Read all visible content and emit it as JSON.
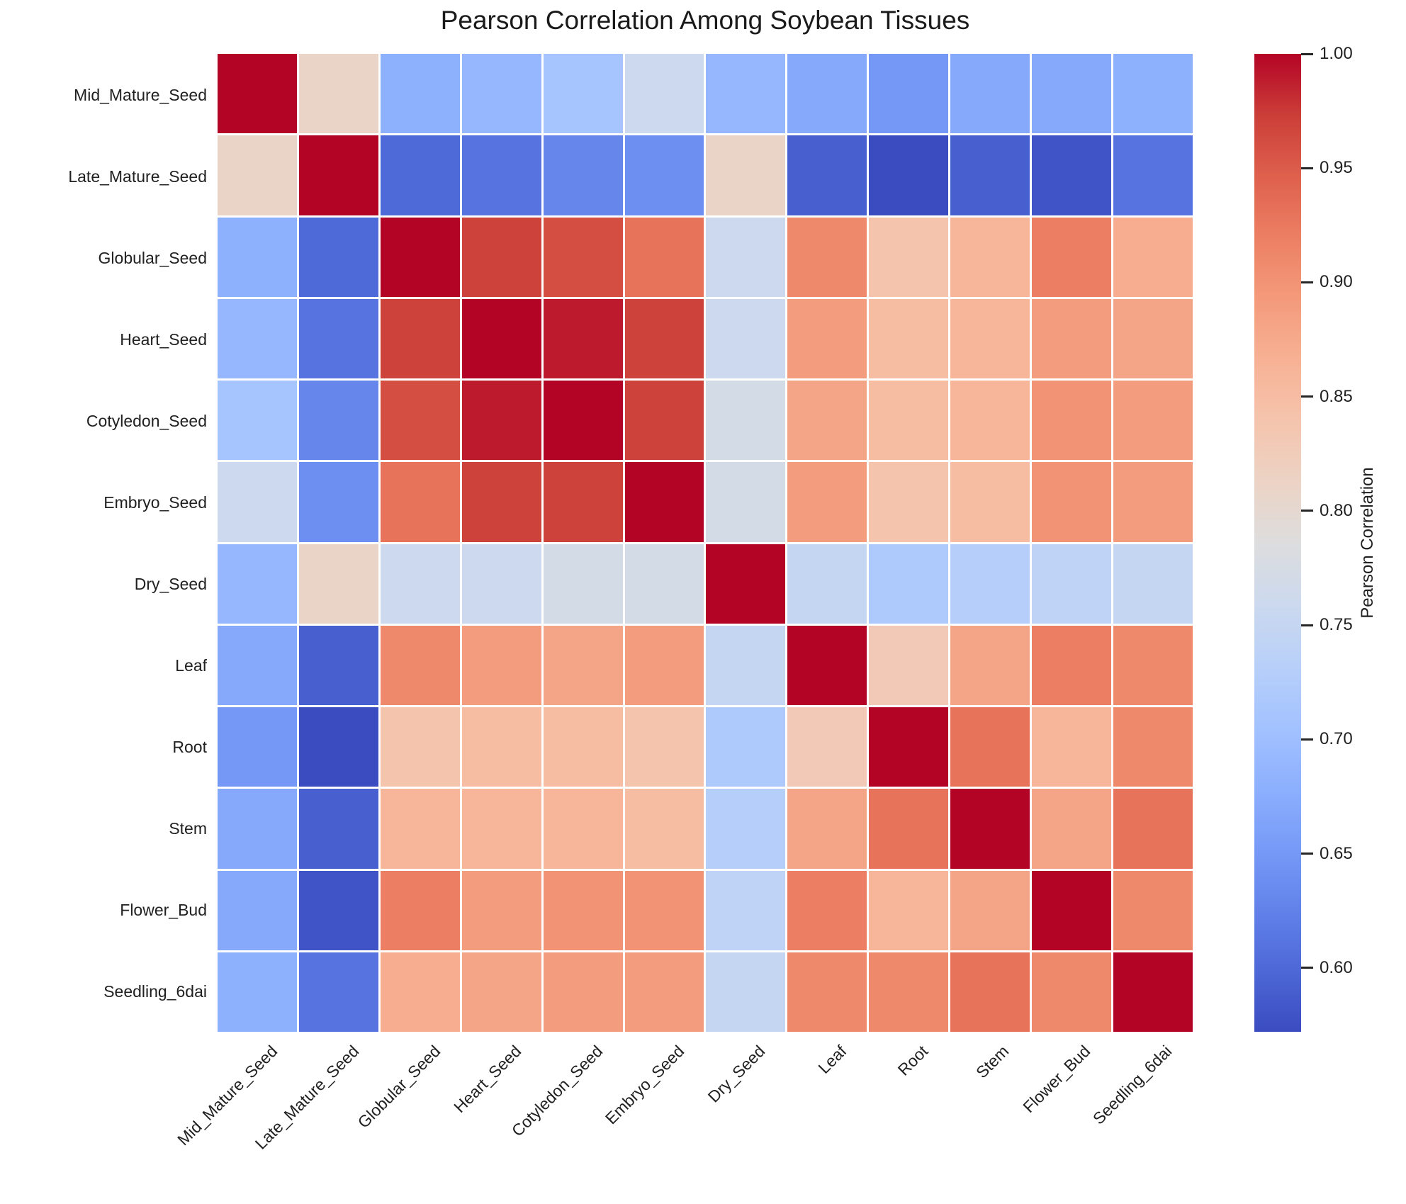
{
  "figure": {
    "title": "Pearson Correlation Among Soybean Tissues",
    "background_color": "#ffffff",
    "text_color": "#212121"
  },
  "chart_data": {
    "type": "heatmap",
    "title": "Pearson Correlation Among Soybean Tissues",
    "x_categories": [
      "Mid_Mature_Seed",
      "Late_Mature_Seed",
      "Globular_Seed",
      "Heart_Seed",
      "Cotyledon_Seed",
      "Embryo_Seed",
      "Dry_Seed",
      "Leaf",
      "Root",
      "Stem",
      "Flower_Bud",
      "Seedling_6dai"
    ],
    "y_categories": [
      "Mid_Mature_Seed",
      "Late_Mature_Seed",
      "Globular_Seed",
      "Heart_Seed",
      "Cotyledon_Seed",
      "Embryo_Seed",
      "Dry_Seed",
      "Leaf",
      "Root",
      "Stem",
      "Flower_Bud",
      "Seedling_6dai"
    ],
    "matrix": [
      [
        1.0,
        0.81,
        0.68,
        0.69,
        0.71,
        0.76,
        0.69,
        0.67,
        0.65,
        0.67,
        0.67,
        0.68
      ],
      [
        0.81,
        1.0,
        0.6,
        0.61,
        0.63,
        0.64,
        0.81,
        0.59,
        0.57,
        0.59,
        0.58,
        0.61
      ],
      [
        0.68,
        0.6,
        1.0,
        0.97,
        0.96,
        0.93,
        0.76,
        0.91,
        0.84,
        0.86,
        0.92,
        0.87
      ],
      [
        0.69,
        0.61,
        0.97,
        1.0,
        0.99,
        0.97,
        0.76,
        0.89,
        0.85,
        0.86,
        0.89,
        0.88
      ],
      [
        0.71,
        0.63,
        0.96,
        0.99,
        1.0,
        0.97,
        0.77,
        0.88,
        0.85,
        0.86,
        0.9,
        0.89
      ],
      [
        0.76,
        0.64,
        0.93,
        0.97,
        0.97,
        1.0,
        0.77,
        0.89,
        0.84,
        0.85,
        0.9,
        0.89
      ],
      [
        0.69,
        0.81,
        0.76,
        0.76,
        0.77,
        0.77,
        1.0,
        0.75,
        0.72,
        0.73,
        0.74,
        0.75
      ],
      [
        0.67,
        0.59,
        0.91,
        0.89,
        0.88,
        0.89,
        0.75,
        1.0,
        0.83,
        0.88,
        0.92,
        0.91
      ],
      [
        0.65,
        0.57,
        0.84,
        0.85,
        0.85,
        0.84,
        0.72,
        0.83,
        1.0,
        0.93,
        0.86,
        0.91
      ],
      [
        0.67,
        0.59,
        0.86,
        0.86,
        0.86,
        0.85,
        0.73,
        0.88,
        0.93,
        1.0,
        0.88,
        0.93
      ],
      [
        0.67,
        0.58,
        0.92,
        0.89,
        0.9,
        0.9,
        0.74,
        0.92,
        0.86,
        0.88,
        1.0,
        0.91
      ],
      [
        0.68,
        0.61,
        0.87,
        0.88,
        0.89,
        0.89,
        0.75,
        0.91,
        0.91,
        0.93,
        0.91,
        1.0
      ]
    ],
    "colormap": "coolwarm",
    "color_range": [
      0.572,
      1.0
    ],
    "grid_line_color": "#ffffff",
    "legend_position": "right",
    "colorbar": {
      "label": "Pearson Correlation",
      "tick_labels": [
        "1.00",
        "0.95",
        "0.90",
        "0.85",
        "0.80",
        "0.75",
        "0.70",
        "0.65",
        "0.60"
      ],
      "tick_values": [
        1.0,
        0.95,
        0.9,
        0.85,
        0.8,
        0.75,
        0.7,
        0.65,
        0.6
      ]
    }
  }
}
